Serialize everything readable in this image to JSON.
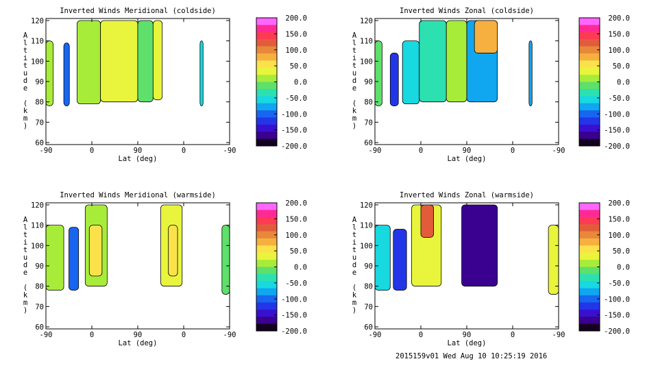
{
  "footer": "2015159v01 Wed Aug 10 10:25:19 2016",
  "shared": {
    "xlabel": "Lat (deg)",
    "ylabel": "Altitude (km)",
    "x_ticks": [
      "-90",
      "0",
      "90",
      "0",
      "-90"
    ],
    "y_ticks": [
      "60",
      "70",
      "80",
      "90",
      "100",
      "110",
      "120"
    ],
    "y_range": [
      59,
      121
    ],
    "colorbar_ticks": [
      "200.0",
      "150.0",
      "100.0",
      "50.0",
      "0.0",
      "-50.0",
      "-100.0",
      "-150.0",
      "-200.0"
    ],
    "colorbar_colors": [
      "#ff66ff",
      "#ff2a95",
      "#ff3a55",
      "#e25c3b",
      "#e8883a",
      "#f6b040",
      "#fce24a",
      "#e8f53c",
      "#a8ec3a",
      "#5ee06a",
      "#2ce0b0",
      "#18d8e0",
      "#10a6f0",
      "#1866f0",
      "#2236e8",
      "#3a10d0",
      "#3a0090",
      "#140020"
    ]
  },
  "chart_data": [
    {
      "type": "heatmap",
      "title": "Inverted Winds Meridional (coldside)",
      "xlabel": "Lat (deg)",
      "ylabel": "Altitude (km)",
      "ylim": [
        60,
        120
      ],
      "color_range": [
        -200,
        200
      ],
      "regions": [
        {
          "x": [
            -90,
            -76
          ],
          "y": [
            78,
            110
          ],
          "value": 20
        },
        {
          "x": [
            -55,
            -44
          ],
          "y": [
            78,
            109
          ],
          "value": -90
        },
        {
          "x": [
            -29,
            17
          ],
          "y": [
            79,
            120
          ],
          "value": 15
        },
        {
          "x": [
            17,
            90
          ],
          "y": [
            80,
            120
          ],
          "value": 25
        },
        {
          "x": [
            90,
            120
          ],
          "y": [
            80,
            120
          ],
          "value": -10
        },
        {
          "x": [
            120,
            138
          ],
          "y": [
            81,
            120
          ],
          "value": 40
        },
        {
          "x": [
            212,
            218
          ],
          "y": [
            78,
            110
          ],
          "value": -60
        }
      ]
    },
    {
      "type": "heatmap",
      "title": "Inverted Winds Zonal (coldside)",
      "xlabel": "Lat (deg)",
      "ylabel": "Altitude (km)",
      "ylim": [
        60,
        120
      ],
      "color_range": [
        -200,
        200
      ],
      "regions": [
        {
          "x": [
            -90,
            -76
          ],
          "y": [
            78,
            110
          ],
          "value": 0
        },
        {
          "x": [
            -60,
            -44
          ],
          "y": [
            78,
            104
          ],
          "value": -120
        },
        {
          "x": [
            -36,
            -3
          ],
          "y": [
            79,
            110
          ],
          "value": -60
        },
        {
          "x": [
            -3,
            50
          ],
          "y": [
            80,
            120
          ],
          "value": -40
        },
        {
          "x": [
            50,
            90
          ],
          "y": [
            80,
            120
          ],
          "value": 5
        },
        {
          "x": [
            90,
            150
          ],
          "y": [
            80,
            120
          ],
          "value": -70
        },
        {
          "x": [
            105,
            150
          ],
          "y": [
            104,
            120
          ],
          "value": 70
        },
        {
          "x": [
            212,
            218
          ],
          "y": [
            78,
            110
          ],
          "value": -80
        }
      ]
    },
    {
      "type": "heatmap",
      "title": "Inverted Winds Meridional (warmside)",
      "xlabel": "Lat (deg)",
      "ylabel": "Altitude (km)",
      "ylim": [
        60,
        120
      ],
      "color_range": [
        -200,
        200
      ],
      "regions": [
        {
          "x": [
            -90,
            -55
          ],
          "y": [
            78,
            110
          ],
          "value": 20
        },
        {
          "x": [
            -45,
            -26
          ],
          "y": [
            78,
            109
          ],
          "value": -90
        },
        {
          "x": [
            -13,
            30
          ],
          "y": [
            80,
            120
          ],
          "value": 10
        },
        {
          "x": [
            -5,
            20
          ],
          "y": [
            85,
            110
          ],
          "value": 65
        },
        {
          "x": [
            135,
            177
          ],
          "y": [
            80,
            120
          ],
          "value": 25
        },
        {
          "x": [
            150,
            168
          ],
          "y": [
            85,
            110
          ],
          "value": 60
        },
        {
          "x": [
            255,
            270
          ],
          "y": [
            76,
            110
          ],
          "value": -20
        }
      ]
    },
    {
      "type": "heatmap",
      "title": "Inverted Winds Zonal (warmside)",
      "xlabel": "Lat (deg)",
      "ylabel": "Altitude (km)",
      "ylim": [
        60,
        120
      ],
      "color_range": [
        -200,
        200
      ],
      "regions": [
        {
          "x": [
            -90,
            -60
          ],
          "y": [
            78,
            110
          ],
          "value": -60
        },
        {
          "x": [
            -54,
            -28
          ],
          "y": [
            78,
            108
          ],
          "value": -120
        },
        {
          "x": [
            -18,
            40
          ],
          "y": [
            80,
            120
          ],
          "value": 40
        },
        {
          "x": [
            0,
            25
          ],
          "y": [
            104,
            120
          ],
          "value": 120
        },
        {
          "x": [
            80,
            150
          ],
          "y": [
            80,
            120
          ],
          "value": -170
        },
        {
          "x": [
            250,
            270
          ],
          "y": [
            76,
            110
          ],
          "value": 25
        }
      ]
    }
  ]
}
